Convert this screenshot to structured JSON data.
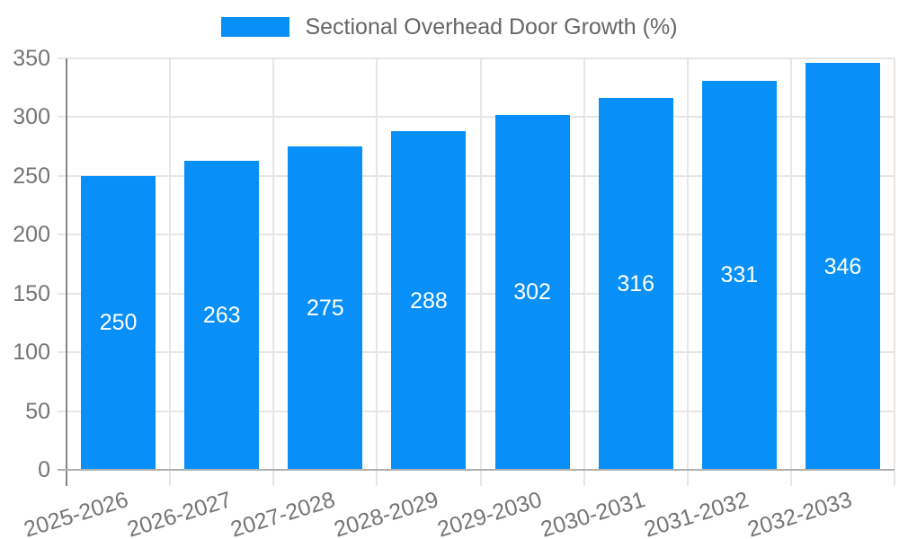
{
  "chart_data": {
    "type": "bar",
    "title": "Sectional Overhead Door Growth (%)",
    "series_name": "Sectional Overhead Door Growth (%)",
    "categories": [
      "2025-2026",
      "2026-2027",
      "2027-2028",
      "2028-2029",
      "2029-2030",
      "2030-2031",
      "2031-2032",
      "2032-2033"
    ],
    "values": [
      250,
      263,
      275,
      288,
      302,
      316,
      331,
      346
    ],
    "bar_value_labels": [
      "250",
      "263",
      "275",
      "288",
      "302",
      "316",
      "331",
      "346"
    ],
    "xlabel": "",
    "ylabel": "",
    "ylim": [
      0,
      350
    ],
    "yticks": [
      0,
      50,
      100,
      150,
      200,
      250,
      300,
      350
    ],
    "grid": true,
    "legend_position": "top",
    "bar_label_position": "inside-center"
  },
  "colors": {
    "bar": "#0990F8",
    "bar_label": "#FFFFFF",
    "title_text": "#666666",
    "axis_text": "#757575",
    "grid": "#E6E6E6",
    "x_axis_line": "#B0B0B0",
    "y_axis_line": "#858585",
    "background": "#FFFFFF"
  }
}
